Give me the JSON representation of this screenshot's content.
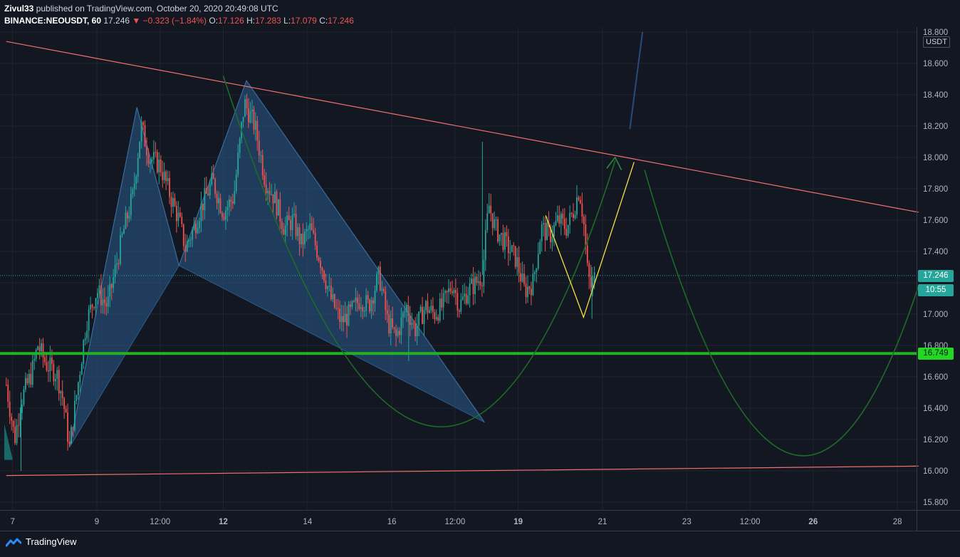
{
  "header": {
    "author": "Zivul33",
    "published_text": "published on TradingView.com, October 20, 2020 20:49:08 UTC",
    "symbol": "BINANCE:NEOUSDT, 60",
    "last": "17.246",
    "change": "▼ −0.323 (−1.84%)",
    "o_label": "O:",
    "o": "17.126",
    "h_label": "H:",
    "h": "17.283",
    "l_label": "L:",
    "l": "17.079",
    "c_label": "C:",
    "c": "17.246"
  },
  "footer": {
    "brand": "TradingView"
  },
  "price_axis": {
    "unit": "USDT"
  },
  "tags": {
    "last_price": "17.246",
    "countdown": "10:55",
    "support_level": "16.749"
  },
  "colors": {
    "background": "#131722",
    "candle_up": "#26a69a",
    "candle_down": "#ef5350",
    "trendline": "#f06f6f",
    "support": "#22b122",
    "projection": "#1e6b2a",
    "pattern_fill": "#2b5b8c",
    "zigzag": "#f5e142",
    "arrow": "#274b7a"
  },
  "chart_data": {
    "type": "candlestick",
    "symbol": "BINANCE:NEOUSDT",
    "interval": "60",
    "ylim": [
      15.75,
      18.85
    ],
    "yticks": [
      "15.800",
      "16.000",
      "16.200",
      "16.400",
      "16.600",
      "16.800",
      "17.000",
      "17.200",
      "17.400",
      "17.600",
      "17.800",
      "18.000",
      "18.200",
      "18.400",
      "18.600",
      "18.800"
    ],
    "xticks": [
      {
        "label": "7",
        "day": 7,
        "bold": false
      },
      {
        "label": "9",
        "day": 9,
        "bold": false
      },
      {
        "label": "12:00",
        "day": 10.5,
        "bold": false
      },
      {
        "label": "12",
        "day": 12,
        "bold": true
      },
      {
        "label": "14",
        "day": 14,
        "bold": false
      },
      {
        "label": "16",
        "day": 16,
        "bold": false
      },
      {
        "label": "12:00",
        "day": 17.5,
        "bold": false
      },
      {
        "label": "19",
        "day": 19,
        "bold": true
      },
      {
        "label": "21",
        "day": 21,
        "bold": false
      },
      {
        "label": "23",
        "day": 23,
        "bold": false
      },
      {
        "label": "12:00",
        "day": 24.5,
        "bold": false
      },
      {
        "label": "26",
        "day": 26,
        "bold": true
      },
      {
        "label": "28",
        "day": 28,
        "bold": false
      }
    ],
    "last_price": 17.246,
    "support_level": 16.749,
    "price_path": [
      [
        6.85,
        16.55
      ],
      [
        7.05,
        16.2
      ],
      [
        7.2,
        16.45
      ],
      [
        7.45,
        16.62
      ],
      [
        7.6,
        16.8
      ],
      [
        7.8,
        16.68
      ],
      [
        8.05,
        16.62
      ],
      [
        8.2,
        16.45
      ],
      [
        8.35,
        16.15
      ],
      [
        8.55,
        16.55
      ],
      [
        8.75,
        16.95
      ],
      [
        9.0,
        17.15
      ],
      [
        9.25,
        17.05
      ],
      [
        9.45,
        17.3
      ],
      [
        9.65,
        17.55
      ],
      [
        9.85,
        17.75
      ],
      [
        10.05,
        18.2
      ],
      [
        10.25,
        18.0
      ],
      [
        10.5,
        17.95
      ],
      [
        10.75,
        17.75
      ],
      [
        10.95,
        17.6
      ],
      [
        11.1,
        17.42
      ],
      [
        11.3,
        17.55
      ],
      [
        11.5,
        17.7
      ],
      [
        11.75,
        17.85
      ],
      [
        12.0,
        17.65
      ],
      [
        12.25,
        17.75
      ],
      [
        12.5,
        18.35
      ],
      [
        12.75,
        18.2
      ],
      [
        13.0,
        17.85
      ],
      [
        13.2,
        17.75
      ],
      [
        13.45,
        17.55
      ],
      [
        13.65,
        17.6
      ],
      [
        13.85,
        17.45
      ],
      [
        14.05,
        17.55
      ],
      [
        14.3,
        17.35
      ],
      [
        14.55,
        17.1
      ],
      [
        14.8,
        16.95
      ],
      [
        15.0,
        17.0
      ],
      [
        15.25,
        17.1
      ],
      [
        15.45,
        17.05
      ],
      [
        15.7,
        17.25
      ],
      [
        15.9,
        16.95
      ],
      [
        16.1,
        16.85
      ],
      [
        16.35,
        17.05
      ],
      [
        16.55,
        16.9
      ],
      [
        16.8,
        17.05
      ],
      [
        17.0,
        17.0
      ],
      [
        17.2,
        17.05
      ],
      [
        17.45,
        17.2
      ],
      [
        17.6,
        17.05
      ],
      [
        17.8,
        17.15
      ],
      [
        18.0,
        17.2
      ],
      [
        18.15,
        17.25
      ],
      [
        18.3,
        17.7
      ],
      [
        18.45,
        17.55
      ],
      [
        18.7,
        17.45
      ],
      [
        18.95,
        17.35
      ],
      [
        19.15,
        17.15
      ],
      [
        19.35,
        17.2
      ],
      [
        19.55,
        17.55
      ],
      [
        19.75,
        17.5
      ],
      [
        19.95,
        17.6
      ],
      [
        20.15,
        17.55
      ],
      [
        20.3,
        17.65
      ],
      [
        20.45,
        17.8
      ],
      [
        20.55,
        17.6
      ],
      [
        20.65,
        17.25
      ],
      [
        20.75,
        17.15
      ],
      [
        20.82,
        17.246
      ]
    ],
    "spikes": [
      {
        "day": 18.15,
        "high": 18.1,
        "low": 17.25
      },
      {
        "day": 16.4,
        "high": 17.05,
        "low": 16.7
      },
      {
        "day": 20.75,
        "high": 17.3,
        "low": 16.97
      },
      {
        "day": 7.2,
        "high": 16.5,
        "low": 16.0
      }
    ],
    "drawings": {
      "upper_trendline": [
        [
          6.85,
          18.74
        ],
        [
          28.5,
          17.65
        ]
      ],
      "lower_trendline": [
        [
          6.85,
          15.97
        ],
        [
          28.5,
          16.03
        ]
      ],
      "harmonic_pattern": [
        [
          8.35,
          16.15
        ],
        [
          9.95,
          18.32
        ],
        [
          10.95,
          17.31
        ],
        [
          12.55,
          18.49
        ],
        [
          18.2,
          16.31
        ]
      ],
      "zigzag": [
        [
          19.65,
          17.63
        ],
        [
          20.55,
          16.98
        ],
        [
          21.75,
          17.97
        ]
      ],
      "projection_cup1": [
        [
          12.0,
          18.52
        ],
        [
          16.85,
          16.29
        ],
        [
          21.3,
          17.98
        ]
      ],
      "projection_arrow_head": [
        [
          21.1,
          17.93
        ],
        [
          21.3,
          18.0
        ],
        [
          21.45,
          17.92
        ]
      ],
      "projection_cup2": [
        [
          22.0,
          17.92
        ],
        [
          25.35,
          16.12
        ],
        [
          28.5,
          17.18
        ]
      ],
      "breakout_arrow": [
        [
          21.65,
          18.18
        ],
        [
          21.95,
          18.8
        ]
      ]
    }
  }
}
